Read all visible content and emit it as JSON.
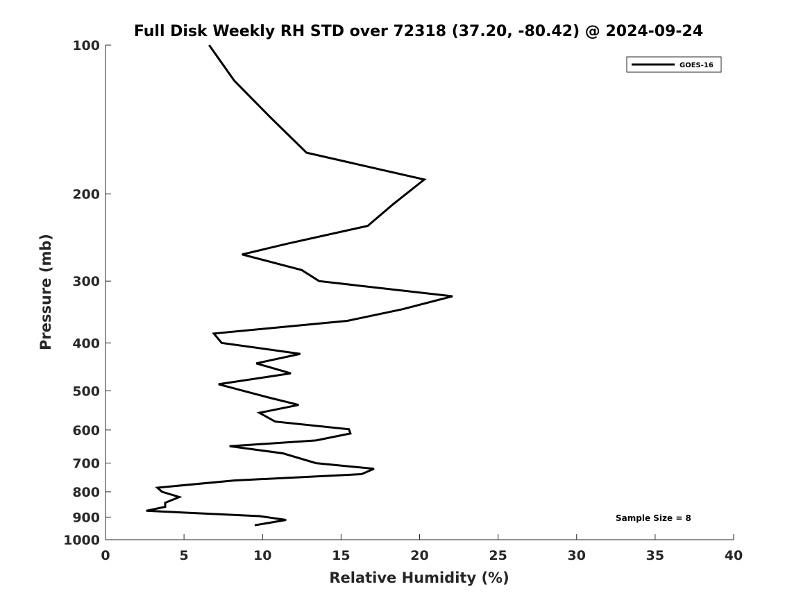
{
  "chart_data": {
    "type": "line",
    "title": "Full Disk Weekly RH STD over 72318 (37.20, -80.42) @ 2024-09-24",
    "xlabel": "Relative Humidity (%)",
    "ylabel": "Pressure (mb)",
    "xlim": [
      0,
      40
    ],
    "ylim": [
      100,
      1000
    ],
    "y_scale": "log",
    "y_reversed": true,
    "x_ticks": [
      "0",
      "5",
      "10",
      "15",
      "20",
      "25",
      "30",
      "35",
      "40"
    ],
    "y_ticks": [
      "100",
      "200",
      "300",
      "400",
      "500",
      "600",
      "700",
      "800",
      "900",
      "1000"
    ],
    "grid": false,
    "legend_position": "top-right",
    "annotation": "Sample Size = 8",
    "series": [
      {
        "name": "GOES-16",
        "color": "#000000",
        "x": [
          6.6,
          8.2,
          10.5,
          12.8,
          20.3,
          18.3,
          16.7,
          11.6,
          8.7,
          12.5,
          13.6,
          22.1,
          18.9,
          15.4,
          6.9,
          7.4,
          12.4,
          9.6,
          11.8,
          7.2,
          10.3,
          12.3,
          9.8,
          10.8,
          15.5,
          15.6,
          13.4,
          7.9,
          11.3,
          13.4,
          17.1,
          16.3,
          8.2,
          3.3,
          3.6,
          4.7,
          3.8,
          3.8,
          2.6,
          9.8,
          11.5,
          9.5
        ],
        "y": [
          100,
          118,
          140,
          165,
          187,
          210,
          232,
          252,
          265,
          285,
          300,
          322,
          342,
          361,
          383,
          400,
          421,
          440,
          461,
          485,
          515,
          534,
          554,
          577,
          598,
          610,
          630,
          647,
          669,
          700,
          719,
          737,
          759,
          785,
          800,
          820,
          842,
          858,
          874,
          896,
          912,
          935
        ]
      }
    ]
  }
}
